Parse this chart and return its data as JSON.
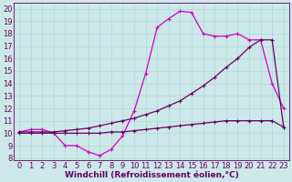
{
  "bg_color": "#cce8e8",
  "line_color1": "#cc00cc",
  "line_color2": "#660066",
  "xlabel": "Windchill (Refroidissement éolien,°C)",
  "xlabel_fontsize": 6.5,
  "ytick_labels": [
    "8",
    "",
    "",
    "",
    "",
    "",
    "",
    "",
    "",
    "",
    "",
    "",
    "20"
  ],
  "yticks": [
    8,
    9,
    10,
    11,
    12,
    13,
    14,
    15,
    16,
    17,
    18,
    19,
    20
  ],
  "xticks": [
    0,
    1,
    2,
    3,
    4,
    5,
    6,
    7,
    8,
    9,
    10,
    11,
    12,
    13,
    14,
    15,
    16,
    17,
    18,
    19,
    20,
    21,
    22,
    23
  ],
  "ylim": [
    7.8,
    20.5
  ],
  "xlim": [
    -0.5,
    23.5
  ],
  "curve1_x": [
    0,
    1,
    2,
    3,
    4,
    5,
    6,
    7,
    8,
    9,
    10,
    11,
    12,
    13,
    14,
    15,
    16,
    17,
    18,
    19,
    20,
    21,
    22,
    23
  ],
  "curve1_y": [
    10.1,
    10.3,
    10.3,
    10.0,
    9.0,
    9.0,
    8.5,
    8.2,
    8.7,
    9.8,
    11.8,
    14.8,
    18.5,
    19.2,
    19.8,
    19.7,
    18.0,
    17.8,
    17.8,
    18.0,
    17.5,
    17.5,
    14.0,
    12.0
  ],
  "curve2_x": [
    0,
    1,
    2,
    3,
    4,
    5,
    6,
    7,
    8,
    9,
    10,
    11,
    12,
    13,
    14,
    15,
    16,
    17,
    18,
    19,
    20,
    21,
    22,
    23
  ],
  "curve2_y": [
    10.1,
    10.1,
    10.1,
    10.1,
    10.2,
    10.3,
    10.4,
    10.6,
    10.8,
    11.0,
    11.2,
    11.5,
    11.8,
    12.2,
    12.6,
    13.2,
    13.8,
    14.5,
    15.3,
    16.0,
    16.9,
    17.5,
    17.5,
    10.5
  ],
  "curve3_x": [
    0,
    1,
    2,
    3,
    4,
    5,
    6,
    7,
    8,
    9,
    10,
    11,
    12,
    13,
    14,
    15,
    16,
    17,
    18,
    19,
    20,
    21,
    22,
    23
  ],
  "curve3_y": [
    10.0,
    10.0,
    10.0,
    10.0,
    10.0,
    10.0,
    10.0,
    10.0,
    10.1,
    10.1,
    10.2,
    10.3,
    10.4,
    10.5,
    10.6,
    10.7,
    10.8,
    10.9,
    11.0,
    11.0,
    11.0,
    11.0,
    11.0,
    10.5
  ],
  "marker": "+",
  "markersize": 3.5,
  "linewidth": 0.9,
  "tick_fontsize": 6,
  "grid_color": "#b0d8d8",
  "grid_linewidth": 0.5,
  "grid_alpha": 1.0
}
